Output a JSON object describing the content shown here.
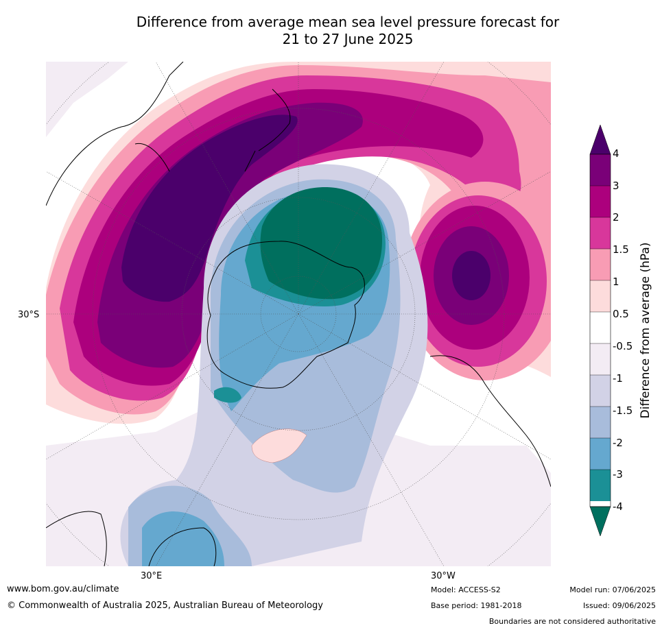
{
  "title": {
    "line1": "Difference from average mean sea level pressure forecast for",
    "line2": "21 to 27 June 2025"
  },
  "map": {
    "projection": "south polar stereographic",
    "labels": {
      "lat_30s": "30°S",
      "lon_30e": "30°E",
      "lon_30w": "30°W"
    }
  },
  "colorbar": {
    "title": "Difference from average (hPa)",
    "ticks": [
      "4",
      "3",
      "2",
      "1.5",
      "1",
      "0.5",
      "-0.5",
      "-1",
      "-1.5",
      "-2",
      "-3",
      "-4"
    ],
    "colors": {
      "over_4": "#4b006b",
      "c3_4": "#7a0078",
      "c2_3": "#ac007d",
      "c1_5_2": "#d8379b",
      "c1_1_5": "#f89cb4",
      "c0_5_1": "#fddcdc",
      "c_neutral": "#ffffff",
      "c_m1_m0_5": "#f3ecf4",
      "c_m1_5_m1": "#d2d2e6",
      "c_m2_m1_5": "#a8bcdb",
      "c_m3_m2": "#65a8cf",
      "c_m4_m3": "#1b9096",
      "under_m4": "#006f5e"
    }
  },
  "footer": {
    "url": "www.bom.gov.au/climate",
    "copyright": "© Commonwealth of Australia 2025, Australian Bureau of Meteorology",
    "model": "Model: ACCESS-S2",
    "base_period": "Base period: 1981-2018",
    "model_run": "Model run: 07/06/2025",
    "issued": "Issued: 09/06/2025",
    "disclaimer": "Boundaries are not considered authoritative"
  }
}
